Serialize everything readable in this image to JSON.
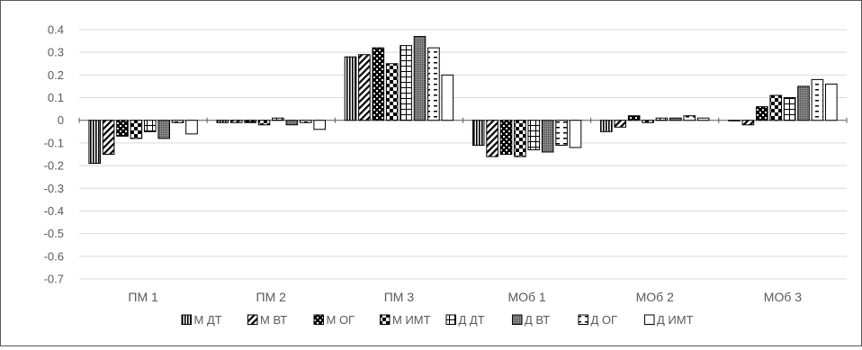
{
  "chart_data": {
    "type": "bar",
    "title": "",
    "xlabel": "",
    "ylabel": "",
    "ylim": [
      -0.7,
      0.4
    ],
    "yticks": [
      "0.4",
      "0.3",
      "0.2",
      "0.1",
      "0",
      "-0.1",
      "-0.2",
      "-0.3",
      "-0.4",
      "-0.5",
      "-0.6",
      "-0.7"
    ],
    "grid": true,
    "legend_position": "bottom",
    "categories": [
      "ПМ 1",
      "ПМ 2",
      "ПМ 3",
      "МОб 1",
      "МОб 2",
      "МОб 3"
    ],
    "series": [
      {
        "name": "М ДТ",
        "pattern": "vertical-stripes",
        "values": [
          -0.19,
          -0.01,
          0.28,
          -0.11,
          -0.05,
          0.0
        ]
      },
      {
        "name": "М ВТ",
        "pattern": "diagonal-stripes",
        "values": [
          -0.15,
          -0.01,
          0.29,
          -0.16,
          -0.03,
          -0.02
        ]
      },
      {
        "name": "М ОГ",
        "pattern": "dark-checker",
        "values": [
          -0.07,
          -0.01,
          0.32,
          -0.15,
          0.02,
          0.06
        ]
      },
      {
        "name": "М ИМТ",
        "pattern": "checker",
        "values": [
          -0.08,
          -0.02,
          0.25,
          -0.16,
          -0.01,
          0.11
        ]
      },
      {
        "name": "Д ДТ",
        "pattern": "grid",
        "values": [
          -0.05,
          0.01,
          0.33,
          -0.13,
          0.01,
          0.1
        ]
      },
      {
        "name": "Д ВТ",
        "pattern": "dense-dots",
        "values": [
          -0.08,
          -0.02,
          0.37,
          -0.14,
          0.01,
          0.15
        ]
      },
      {
        "name": "Д ОГ",
        "pattern": "horizontal-dashes",
        "values": [
          -0.01,
          -0.01,
          0.32,
          -0.11,
          0.02,
          0.18
        ]
      },
      {
        "name": "Д ИМТ",
        "pattern": "solid-white",
        "values": [
          -0.06,
          -0.04,
          0.2,
          -0.12,
          0.01,
          0.16
        ]
      }
    ],
    "colors": {
      "stroke": "#000000",
      "fill": "#ffffff",
      "grid": "#d9d9d9",
      "axis": "#595959",
      "text": "#595959"
    }
  }
}
